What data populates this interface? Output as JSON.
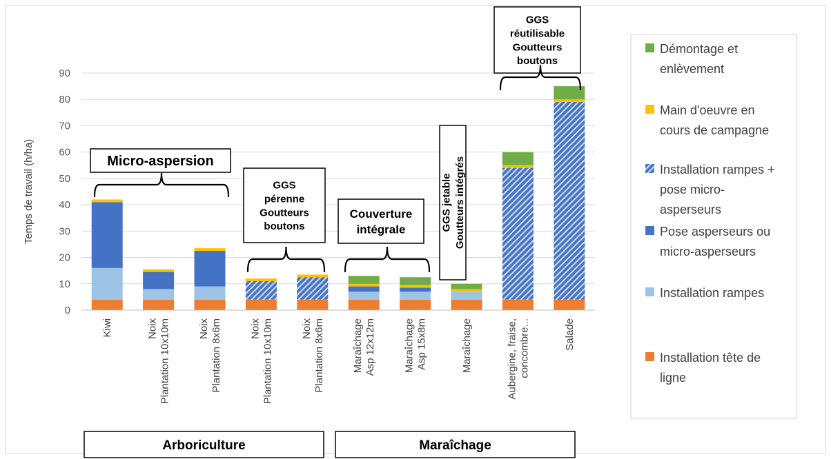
{
  "chart_data": {
    "type": "bar",
    "stacked": true,
    "ylabel": "Temps de travail (h/ha)",
    "ylim": [
      0,
      90
    ],
    "yticks": [
      0,
      10,
      20,
      30,
      40,
      50,
      60,
      70,
      80,
      90
    ],
    "grid": true,
    "legend_position": "right",
    "categories": [
      [
        "Kiwi"
      ],
      [
        "Noix",
        "Plantation 10x10m"
      ],
      [
        "Noix",
        "Plantation 8x6m"
      ],
      [
        "Noix",
        "Plantation 10x10m"
      ],
      [
        "Noix",
        "Plantation 8x6m"
      ],
      [
        "Maraîchage",
        "Asp 12x12m"
      ],
      [
        "Maraîchage",
        "Asp 15x8m"
      ],
      [
        "Maraîchage"
      ],
      [
        "Aubergine, fraise,",
        "concombre..."
      ],
      [
        "Salade"
      ]
    ],
    "series": [
      {
        "name": "Installation tête de ligne",
        "legend_lines": [
          "Installation tête de",
          "ligne"
        ],
        "color": "#ED7D31",
        "pattern": "solid",
        "values": [
          4,
          4,
          4,
          4,
          4,
          4,
          4,
          4,
          4,
          4
        ]
      },
      {
        "name": "Installation rampes",
        "legend_lines": [
          "Installation rampes"
        ],
        "color": "#9DC3E6",
        "pattern": "solid",
        "values": [
          12,
          4,
          5,
          0,
          0,
          3,
          3,
          3,
          0,
          0
        ]
      },
      {
        "name": "Pose asperseurs ou micro-asperseurs",
        "legend_lines": [
          "Pose asperseurs ou",
          "micro-asperseurs"
        ],
        "color": "#4472C4",
        "pattern": "solid",
        "values": [
          25,
          6.5,
          13.5,
          0,
          0,
          2,
          1.5,
          0,
          0,
          0
        ]
      },
      {
        "name": "Installation rampes + pose micro-asperseurs",
        "legend_lines": [
          "Installation rampes +",
          "pose micro-",
          "asperseurs"
        ],
        "color": "#4472C4",
        "pattern": "hatch",
        "values": [
          0,
          0,
          0,
          7,
          8.5,
          0,
          0,
          0,
          50,
          75
        ]
      },
      {
        "name": "Main d'oeuvre en cours de campagne",
        "legend_lines": [
          "Main d'oeuvre en",
          "cours de campagne"
        ],
        "color": "#FFC000",
        "pattern": "solid",
        "values": [
          1,
          1,
          1,
          1,
          1,
          1,
          1,
          1,
          1,
          1
        ]
      },
      {
        "name": "Démontage et enlèvement",
        "legend_lines": [
          "Démontage et",
          "enlèvement"
        ],
        "color": "#70AD47",
        "pattern": "solid",
        "values": [
          0,
          0,
          0,
          0,
          0,
          3,
          3,
          2,
          5,
          5
        ]
      }
    ],
    "annotations": [
      {
        "text": [
          "Micro-aspersion"
        ],
        "bars": [
          0,
          2
        ]
      },
      {
        "text": [
          "GGS",
          "pérenne",
          "Goutteurs",
          "boutons"
        ],
        "bars": [
          3,
          4
        ]
      },
      {
        "text": [
          "Couverture",
          "intégrale"
        ],
        "bars": [
          5,
          6
        ]
      },
      {
        "text": [
          "GGS jetable",
          "Goutteurs intégrés"
        ],
        "bars": [
          7,
          7
        ],
        "rotated": true
      },
      {
        "text": [
          "GGS",
          "réutilisable",
          "Goutteurs",
          "boutons"
        ],
        "bars": [
          8,
          9
        ]
      }
    ],
    "groups": [
      {
        "label": "Arboriculture",
        "bars": [
          0,
          4
        ]
      },
      {
        "label": "Maraîchage",
        "bars": [
          5,
          9
        ]
      }
    ]
  }
}
